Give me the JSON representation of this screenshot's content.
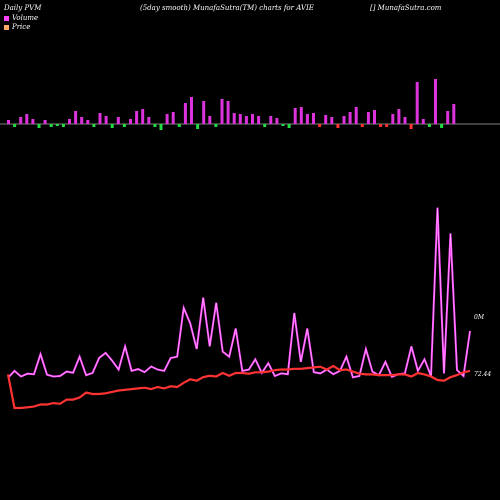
{
  "header": {
    "left": "Daily PVM",
    "middle": "(5day smooth) MunafaSutra(TM) charts for AVIE",
    "right": "[] MunafaSutra.com"
  },
  "legend": [
    {
      "label": "Volume",
      "color": "#ff44ff"
    },
    {
      "label": "Price",
      "color": "#ffaa66"
    }
  ],
  "chart_data": [
    {
      "type": "bar",
      "title": "",
      "description_series": "Daily PVM volume bars (up/down direction)",
      "values": [
        4,
        -3,
        7,
        10,
        5,
        -4,
        4,
        -3,
        -2,
        -3,
        5,
        13,
        7,
        4,
        -3,
        11,
        8,
        -4,
        7,
        -3,
        5,
        13,
        15,
        7,
        -3,
        -6,
        10,
        12,
        -3,
        21,
        27,
        -5,
        23,
        8,
        -3,
        25,
        23,
        11,
        10,
        8,
        10,
        8,
        -3,
        8,
        6,
        -2,
        -4,
        16,
        17,
        10,
        11,
        -3,
        9,
        7,
        -4,
        8,
        12,
        17,
        -3,
        12,
        14,
        -3,
        -3,
        10,
        15,
        7,
        -5,
        42,
        5,
        -3,
        45,
        -4,
        13,
        20
      ],
      "colors": [
        "#dd33dd",
        "#22dd44",
        "#dd33dd",
        "#dd33dd",
        "#dd33dd",
        "#22dd44",
        "#dd33dd",
        "#22dd44",
        "#22dd44",
        "#22dd44",
        "#dd33dd",
        "#dd33dd",
        "#dd33dd",
        "#dd33dd",
        "#22dd44",
        "#dd33dd",
        "#dd33dd",
        "#22dd44",
        "#dd33dd",
        "#22dd44",
        "#dd33dd",
        "#dd33dd",
        "#dd33dd",
        "#dd33dd",
        "#22dd44",
        "#22dd44",
        "#dd33dd",
        "#dd33dd",
        "#22dd44",
        "#dd33dd",
        "#dd33dd",
        "#22dd44",
        "#dd33dd",
        "#dd33dd",
        "#22dd44",
        "#dd33dd",
        "#dd33dd",
        "#dd33dd",
        "#dd33dd",
        "#dd33dd",
        "#dd33dd",
        "#dd33dd",
        "#22dd44",
        "#dd33dd",
        "#dd33dd",
        "#22dd44",
        "#22dd44",
        "#dd33dd",
        "#dd33dd",
        "#dd33dd",
        "#dd33dd",
        "#ff3333",
        "#dd33dd",
        "#dd33dd",
        "#ff3333",
        "#dd33dd",
        "#dd33dd",
        "#dd33dd",
        "#ff3333",
        "#dd33dd",
        "#dd33dd",
        "#ff3333",
        "#ff3333",
        "#dd33dd",
        "#dd33dd",
        "#dd33dd",
        "#ff3333",
        "#dd33dd",
        "#dd33dd",
        "#22dd44",
        "#dd33dd",
        "#22dd44",
        "#dd33dd",
        "#dd33dd"
      ],
      "ylim": [
        -10,
        50
      ]
    },
    {
      "type": "line",
      "series": [
        {
          "name": "Volume",
          "color": "#ff44ff",
          "values": [
            0.28,
            0.55,
            0.33,
            0.44,
            0.42,
            1.2,
            0.4,
            0.33,
            0.35,
            0.52,
            0.48,
            1.1,
            0.38,
            0.47,
            1.05,
            1.25,
            0.95,
            0.6,
            1.5,
            0.55,
            0.62,
            0.5,
            0.72,
            0.6,
            0.55,
            1.05,
            1.1,
            3.0,
            2.4,
            1.4,
            3.4,
            1.5,
            3.2,
            1.3,
            1.1,
            2.2,
            0.55,
            0.6,
            1.0,
            0.47,
            0.85,
            0.35,
            0.45,
            0.42,
            2.8,
            0.9,
            2.2,
            0.5,
            0.45,
            0.6,
            0.42,
            0.55,
            1.1,
            0.3,
            0.35,
            1.4,
            0.52,
            0.38,
            0.9,
            0.32,
            0.42,
            0.45,
            1.5,
            0.55,
            1.0,
            0.35,
            6.9,
            0.45,
            5.9,
            0.58,
            0.35,
            2.1
          ],
          "label": "0M"
        },
        {
          "name": "Price",
          "color": "#ff3333",
          "values": [
            72.2,
            67.4,
            67.4,
            67.5,
            67.6,
            67.9,
            67.9,
            68.1,
            68.0,
            68.6,
            68.6,
            68.9,
            69.6,
            69.4,
            69.4,
            69.5,
            69.7,
            69.9,
            70.0,
            70.1,
            70.2,
            70.3,
            70.1,
            70.4,
            70.2,
            70.5,
            70.4,
            71.0,
            71.5,
            71.3,
            71.8,
            72.0,
            71.9,
            72.4,
            72.0,
            72.4,
            72.4,
            72.3,
            72.5,
            72.5,
            72.6,
            72.8,
            72.9,
            72.9,
            73.0,
            73.0,
            73.1,
            73.2,
            73.3,
            72.9,
            73.4,
            72.8,
            72.9,
            72.6,
            72.3,
            72.2,
            72.2,
            72.1,
            72.1,
            72.1,
            72.2,
            72.2,
            71.9,
            72.4,
            72.2,
            71.9,
            71.4,
            71.3,
            71.8,
            72.1,
            72.5,
            72.7
          ],
          "label": "72.44"
        }
      ],
      "ylim": [
        66,
        79
      ]
    }
  ]
}
